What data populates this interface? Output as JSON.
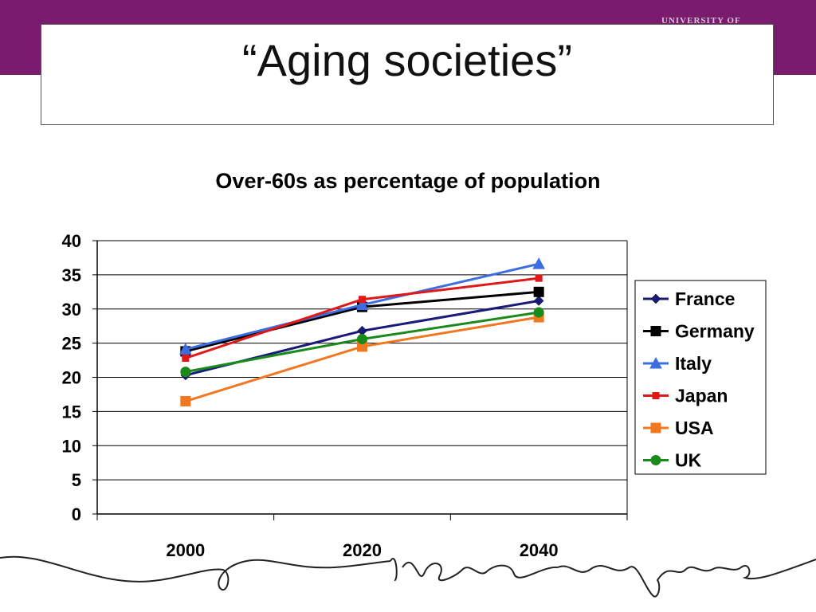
{
  "slide": {
    "title": "“Aging societies”",
    "brand_color": "#7a1c6e"
  },
  "logo": {
    "text": "UNIVERSITY OF"
  },
  "footer": {
    "tagline_icon": "ideas-everywhere-script"
  },
  "chart_data": {
    "type": "line",
    "title": "Over-60s as percentage of population",
    "xlabel": "",
    "ylabel": "",
    "categories": [
      "2000",
      "2020",
      "2040"
    ],
    "ylim": [
      0,
      40
    ],
    "yticks": [
      0,
      5,
      10,
      15,
      20,
      25,
      30,
      35,
      40
    ],
    "grid": true,
    "legend_position": "right",
    "series": [
      {
        "name": "France",
        "values": [
          20.3,
          26.8,
          31.2
        ],
        "color": "#1a1a7a",
        "marker": "diamond"
      },
      {
        "name": "Germany",
        "values": [
          23.8,
          30.3,
          32.5
        ],
        "color": "#000000",
        "marker": "square"
      },
      {
        "name": "Italy",
        "values": [
          24.1,
          30.6,
          36.6
        ],
        "color": "#3d6ee0",
        "marker": "triangle"
      },
      {
        "name": "Japan",
        "values": [
          22.8,
          31.4,
          34.5
        ],
        "color": "#e01818",
        "marker": "small-square"
      },
      {
        "name": "USA",
        "values": [
          16.5,
          24.5,
          28.8
        ],
        "color": "#f07820",
        "marker": "square"
      },
      {
        "name": "UK",
        "values": [
          20.8,
          25.6,
          29.5
        ],
        "color": "#1a8a1a",
        "marker": "circle"
      }
    ]
  }
}
